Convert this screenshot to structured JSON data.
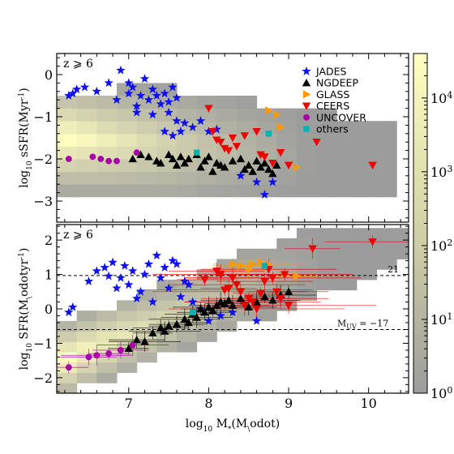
{
  "chart_data": {
    "type": "scatter",
    "xlabel": "log$_{10}$ M$_*$(M$_\\odot$)",
    "xlim": [
      6.1,
      10.5
    ],
    "xticks": [
      "7",
      "8",
      "9",
      "10"
    ],
    "legend_placement": "top-right",
    "series_styles": [
      {
        "name": "JADES",
        "marker": "star",
        "color": "#1010ee"
      },
      {
        "name": "NGDEEP",
        "marker": "triangle-up",
        "color": "#000000"
      },
      {
        "name": "GLASS",
        "marker": "triangle-right",
        "color": "#ff9900"
      },
      {
        "name": "CEERS",
        "marker": "triangle-down",
        "color": "#ee0000"
      },
      {
        "name": "UNCOVER",
        "marker": "circle",
        "color": "#aa00aa"
      },
      {
        "name": "others",
        "marker": "square",
        "color": "#00b3b3"
      }
    ],
    "colorbar": {
      "scale": "log",
      "range": [
        1,
        40000
      ],
      "tick_labels": [
        "10$^0$",
        "10$^1$",
        "10$^2$",
        "10$^3$",
        "10$^4$"
      ],
      "colors": [
        "#9c9c9c",
        "#ffffc0"
      ]
    },
    "panels": [
      {
        "annotation": "z ⩾ 6",
        "ylabel": "log$_{10}$ sSFR(Myr$^{-1}$)",
        "ylim": [
          -3.5,
          0.5
        ],
        "yticks": [
          "0",
          "−1",
          "−2",
          "−3"
        ],
        "series": [
          {
            "name": "JADES",
            "x": [
              6.25,
              6.3,
              6.35,
              6.45,
              6.6,
              6.75,
              6.85,
              7.0,
              7.05,
              7.1,
              7.15,
              7.2,
              7.25,
              7.3,
              7.35,
              7.4,
              7.45,
              7.5,
              7.55,
              7.6,
              6.9,
              7.0,
              7.1,
              7.3,
              7.5,
              7.6,
              7.7,
              7.8,
              7.9,
              8.0,
              7.45,
              7.55,
              7.65,
              8.1,
              8.4,
              8.6,
              8.7,
              8.8
            ],
            "y": [
              -0.5,
              -0.45,
              -0.35,
              -0.3,
              -0.4,
              -0.2,
              -0.6,
              -0.45,
              -0.3,
              -0.75,
              -0.5,
              -0.1,
              -0.6,
              -0.35,
              -0.5,
              -0.7,
              -0.45,
              -0.65,
              -0.3,
              -0.55,
              0.1,
              -0.2,
              -0.9,
              -0.95,
              -0.9,
              -1.1,
              -1.15,
              -1.25,
              -1.1,
              -1.35,
              -1.35,
              -1.45,
              -1.35,
              -1.3,
              -2.4,
              -2.55,
              -2.85,
              -2.55
            ]
          },
          {
            "name": "NGDEEP",
            "x": [
              7.05,
              7.15,
              7.25,
              7.35,
              7.4,
              7.5,
              7.55,
              7.6,
              7.65,
              7.7,
              7.75,
              7.85,
              7.9,
              7.95,
              8.0,
              8.05,
              8.1,
              8.15,
              8.2,
              8.3,
              8.4,
              8.45,
              8.5,
              8.55,
              8.6,
              8.65,
              8.7,
              8.75,
              8.8,
              8.85
            ],
            "y": [
              -2.0,
              -1.9,
              -1.95,
              -2.05,
              -2.1,
              -1.9,
              -2.0,
              -2.15,
              -1.95,
              -2.1,
              -2.0,
              -1.9,
              -2.2,
              -2.05,
              -1.95,
              -2.3,
              -2.1,
              -2.15,
              -2.2,
              -2.05,
              -2.0,
              -2.25,
              -2.15,
              -2.3,
              -2.05,
              -2.2,
              -2.1,
              -2.25,
              -2.35,
              -2.15
            ]
          },
          {
            "name": "GLASS",
            "x": [
              8.75,
              8.85,
              8.9,
              9.1
            ],
            "y": [
              -0.85,
              -0.95,
              -1.25,
              -2.2
            ]
          },
          {
            "name": "CEERS",
            "x": [
              8.0,
              8.05,
              8.1,
              8.15,
              8.2,
              8.25,
              8.3,
              8.35,
              8.45,
              8.6,
              8.65,
              8.7,
              8.8,
              8.9,
              9.0,
              9.35,
              10.05
            ],
            "y": [
              -0.8,
              -1.35,
              -1.55,
              -1.6,
              -1.75,
              -1.8,
              -1.5,
              -1.7,
              -1.45,
              -1.35,
              -1.9,
              -1.95,
              -2.1,
              -1.85,
              -2.15,
              -1.6,
              -2.15
            ]
          },
          {
            "name": "UNCOVER",
            "x": [
              6.25,
              6.55,
              6.65,
              6.75,
              6.85,
              7.1
            ],
            "y": [
              -2.0,
              -1.95,
              -2.0,
              -2.05,
              -2.05,
              -1.85
            ]
          },
          {
            "name": "others",
            "x": [
              7.85,
              8.75
            ],
            "y": [
              -1.85,
              -1.4
            ]
          }
        ]
      },
      {
        "annotation": "z ⩾ 6",
        "ylabel": "log$_{10}$ SFR(M$_\\odot$yr$^{-1}$)",
        "ylim": [
          -2.45,
          2.45
        ],
        "yticks": [
          "2",
          "1",
          "0",
          "−1",
          "−2"
        ],
        "hlines": [
          {
            "y": 0.97,
            "label": "21"
          },
          {
            "y": -0.6,
            "label": "M$_{\\rm UV}$ = −17"
          }
        ],
        "series": [
          {
            "name": "JADES",
            "x": [
              6.25,
              6.3,
              6.5,
              6.6,
              6.7,
              6.75,
              6.8,
              6.85,
              6.9,
              6.95,
              7.0,
              7.05,
              7.1,
              7.15,
              7.2,
              7.25,
              7.3,
              7.35,
              7.4,
              7.45,
              7.5,
              7.55,
              7.6,
              7.7,
              7.75,
              7.65,
              7.8,
              7.9,
              8.0,
              8.15,
              8.3,
              8.6
            ],
            "y": [
              -0.1,
              0.05,
              0.8,
              1.1,
              1.2,
              0.95,
              1.35,
              0.6,
              0.9,
              1.25,
              0.7,
              1.1,
              0.3,
              0.5,
              1.0,
              1.3,
              0.2,
              1.55,
              0.9,
              1.2,
              0.6,
              1.4,
              1.3,
              0.8,
              0.7,
              0.35,
              0.2,
              0.0,
              -0.35,
              -0.2,
              -0.1,
              -0.35
            ]
          },
          {
            "name": "NGDEEP",
            "x": [
              7.0,
              7.1,
              7.2,
              7.3,
              7.4,
              7.45,
              7.5,
              7.6,
              7.7,
              7.75,
              7.8,
              7.85,
              7.9,
              7.95,
              8.0,
              8.05,
              8.1,
              8.15,
              8.2,
              8.25,
              8.3,
              8.4,
              8.5,
              8.6,
              8.7,
              8.8,
              8.9,
              9.0
            ],
            "y": [
              -1.15,
              -0.9,
              -0.95,
              -0.7,
              -0.55,
              -0.65,
              -0.5,
              -0.45,
              -0.3,
              -0.4,
              -0.15,
              -0.25,
              0.0,
              -0.1,
              0.05,
              -0.05,
              0.1,
              0.2,
              0.15,
              0.25,
              0.1,
              0.3,
              0.05,
              0.2,
              0.35,
              0.25,
              0.4,
              0.5
            ]
          },
          {
            "name": "GLASS",
            "x": [
              8.3,
              8.4,
              8.5,
              8.55,
              8.65,
              8.75,
              9.1
            ],
            "y": [
              1.3,
              1.25,
              1.15,
              1.3,
              1.35,
              1.3,
              0.95
            ]
          },
          {
            "name": "CEERS",
            "x": [
              7.95,
              8.1,
              8.15,
              8.2,
              8.25,
              8.3,
              8.35,
              8.4,
              8.45,
              8.5,
              8.55,
              8.6,
              8.65,
              8.7,
              8.75,
              8.8,
              8.85,
              8.9,
              8.95,
              9.0,
              9.3,
              10.05
            ],
            "y": [
              0.85,
              1.1,
              1.0,
              0.55,
              0.6,
              0.9,
              0.7,
              0.5,
              0.1,
              0.3,
              0.2,
              0.0,
              0.45,
              0.8,
              1.15,
              0.9,
              0.5,
              0.3,
              1.0,
              0.1,
              1.75,
              1.95
            ]
          },
          {
            "name": "UNCOVER",
            "x": [
              6.25,
              6.5,
              6.6,
              6.75,
              6.9,
              7.05
            ],
            "y": [
              -1.7,
              -1.4,
              -1.35,
              -1.3,
              -1.2,
              -1.05
            ]
          },
          {
            "name": "others",
            "x": [
              7.8,
              8.7
            ],
            "y": [
              -0.1,
              1.25
            ]
          }
        ]
      }
    ]
  }
}
